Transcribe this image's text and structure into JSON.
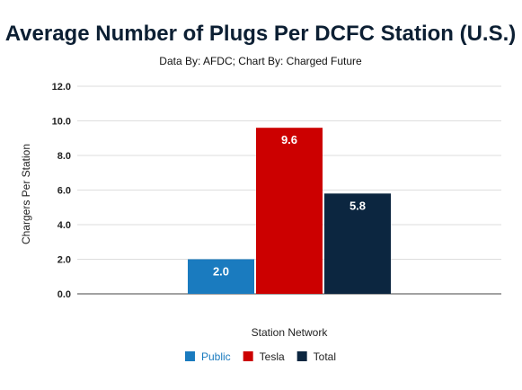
{
  "chart_data": {
    "type": "bar",
    "title": "Average Number of Plugs Per DCFC Station (U.S.)",
    "subtitle": "Data By: AFDC; Chart By: Charged Future",
    "xlabel": "Station Network",
    "ylabel": "Chargers Per Station",
    "ylim": [
      0,
      12
    ],
    "yticks": [
      "0.0",
      "2.0",
      "4.0",
      "6.0",
      "8.0",
      "10.0",
      "12.0"
    ],
    "grid": true,
    "legend_position": "bottom",
    "series": [
      {
        "name": "Public",
        "value": 2.0,
        "label": "2.0",
        "color": "#1a7bbf"
      },
      {
        "name": "Tesla",
        "value": 9.6,
        "label": "9.6",
        "color": "#cc0000"
      },
      {
        "name": "Total",
        "value": 5.8,
        "label": "5.8",
        "color": "#0c2640"
      }
    ]
  }
}
